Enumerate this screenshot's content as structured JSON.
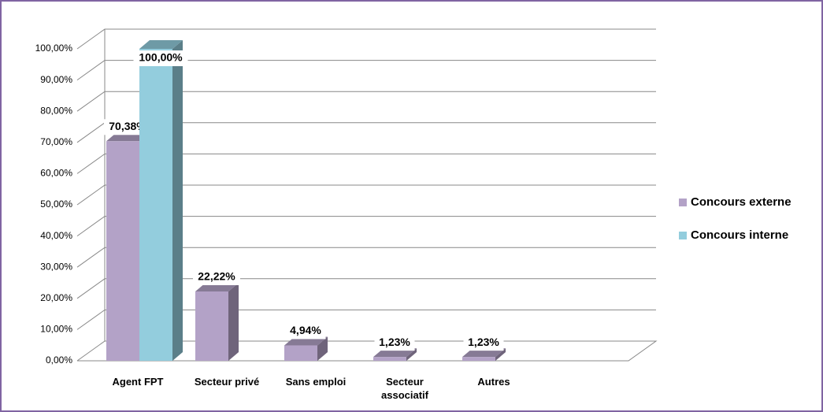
{
  "chart_data": {
    "type": "bar3d",
    "categories": [
      "Agent FPT",
      "Secteur privé",
      "Sans emploi",
      "Secteur associatif",
      "Autres"
    ],
    "series": [
      {
        "name": "Concours externe",
        "color": "#b3a2c7",
        "values": [
          70.38,
          22.22,
          4.94,
          1.23,
          1.23
        ],
        "value_labels": [
          "70,38%",
          "22,22%",
          "4,94%",
          "1,23%",
          "1,23%"
        ]
      },
      {
        "name": "Concours interne",
        "color": "#93cddd",
        "values": [
          100,
          null,
          null,
          null,
          null
        ],
        "value_labels": [
          "100,00%",
          null,
          null,
          null,
          null
        ]
      }
    ],
    "ylim": [
      0,
      100
    ],
    "yticks": [
      {
        "value": 0,
        "label": "0,00%"
      },
      {
        "value": 10,
        "label": "10,00%"
      },
      {
        "value": 20,
        "label": "20,00%"
      },
      {
        "value": 30,
        "label": "30,00%"
      },
      {
        "value": 40,
        "label": "40,00%"
      },
      {
        "value": 50,
        "label": "50,00%"
      },
      {
        "value": 60,
        "label": "60,00%"
      },
      {
        "value": 70,
        "label": "70,00%"
      },
      {
        "value": 80,
        "label": "80,00%"
      },
      {
        "value": 90,
        "label": "90,00%"
      },
      {
        "value": 100,
        "label": "100,00%"
      }
    ],
    "grid": true,
    "legend": "right"
  }
}
